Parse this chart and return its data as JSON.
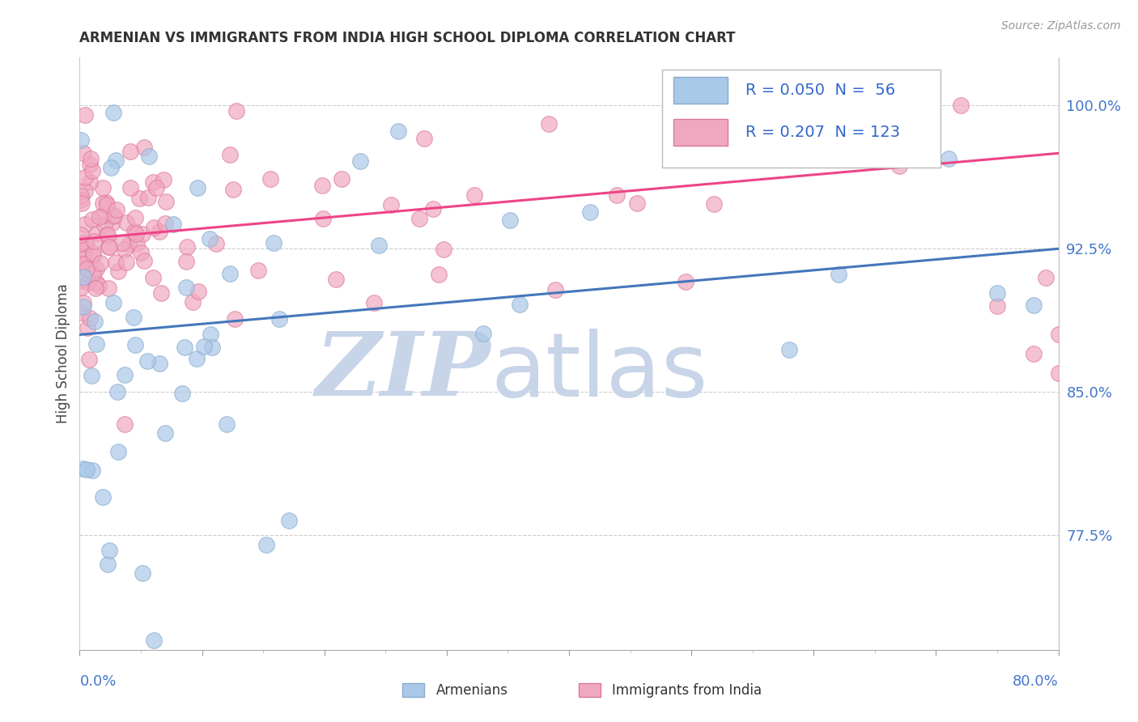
{
  "title": "ARMENIAN VS IMMIGRANTS FROM INDIA HIGH SCHOOL DIPLOMA CORRELATION CHART",
  "source": "Source: ZipAtlas.com",
  "ylabel": "High School Diploma",
  "ytick_labels": [
    "77.5%",
    "85.0%",
    "92.5%",
    "100.0%"
  ],
  "ytick_values": [
    0.775,
    0.85,
    0.925,
    1.0
  ],
  "legend_stats": [
    {
      "R": "0.050",
      "N": "56"
    },
    {
      "R": "0.207",
      "N": "123"
    }
  ],
  "blue_line_x": [
    0.0,
    0.8
  ],
  "blue_line_y": [
    0.88,
    0.925
  ],
  "pink_line_x": [
    0.0,
    0.8
  ],
  "pink_line_y": [
    0.93,
    0.975
  ],
  "xlim": [
    0.0,
    0.8
  ],
  "ylim": [
    0.715,
    1.025
  ],
  "title_color": "#333333",
  "title_fontsize": 13,
  "axis_label_color": "#444444",
  "tick_color": "#4477cc",
  "blue_dot_color": "#aac8e8",
  "blue_dot_edge": "#88aacc",
  "pink_dot_color": "#f0a8c0",
  "pink_dot_edge": "#dd7799",
  "blue_line_color": "#4477bb",
  "pink_line_color": "#ee4488",
  "grid_color": "#cccccc",
  "legend_border_color": "#bbbbbb",
  "stat_value_color": "#3366cc",
  "bottom_legend_color": "#333333",
  "watermark_zip_color": "#c8d4e8",
  "watermark_atlas_color": "#c8d4e8"
}
